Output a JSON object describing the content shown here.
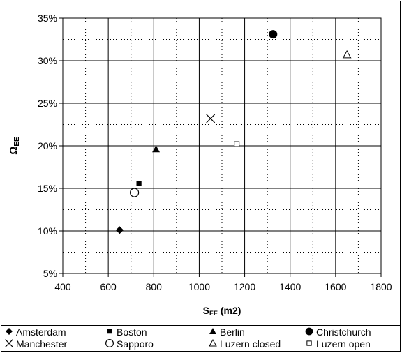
{
  "chart_data": {
    "type": "scatter",
    "xlabel_main": "S",
    "xlabel_sub": "EE",
    "xlabel_unit": " (m2)",
    "ylabel_main": "Ω",
    "ylabel_sub": "EE",
    "xlim": [
      400,
      1800
    ],
    "ylim": [
      5,
      35
    ],
    "x_ticks": [
      "400",
      "600",
      "800",
      "1000",
      "1200",
      "1400",
      "1600",
      "1800"
    ],
    "y_ticks": [
      "5%",
      "10%",
      "15%",
      "20%",
      "25%",
      "30%",
      "35%"
    ],
    "grid": "major solid, minor dotted",
    "legend_position": "bottom",
    "series": [
      {
        "name": "Amsterdam",
        "marker": "diamond-filled",
        "x": 650,
        "y": 10.1
      },
      {
        "name": "Boston",
        "marker": "square-filled",
        "x": 735,
        "y": 15.6
      },
      {
        "name": "Berlin",
        "marker": "triangle-filled",
        "x": 810,
        "y": 19.6
      },
      {
        "name": "Christchurch",
        "marker": "circle-filled",
        "x": 1325,
        "y": 33.1
      },
      {
        "name": "Manchester",
        "marker": "x",
        "x": 1050,
        "y": 23.2
      },
      {
        "name": "Sapporo",
        "marker": "circle-open",
        "x": 715,
        "y": 14.5
      },
      {
        "name": "Luzern closed",
        "marker": "triangle-open",
        "x": 1650,
        "y": 30.7
      },
      {
        "name": "Luzern open",
        "marker": "square-open",
        "x": 1165,
        "y": 20.2
      }
    ]
  }
}
